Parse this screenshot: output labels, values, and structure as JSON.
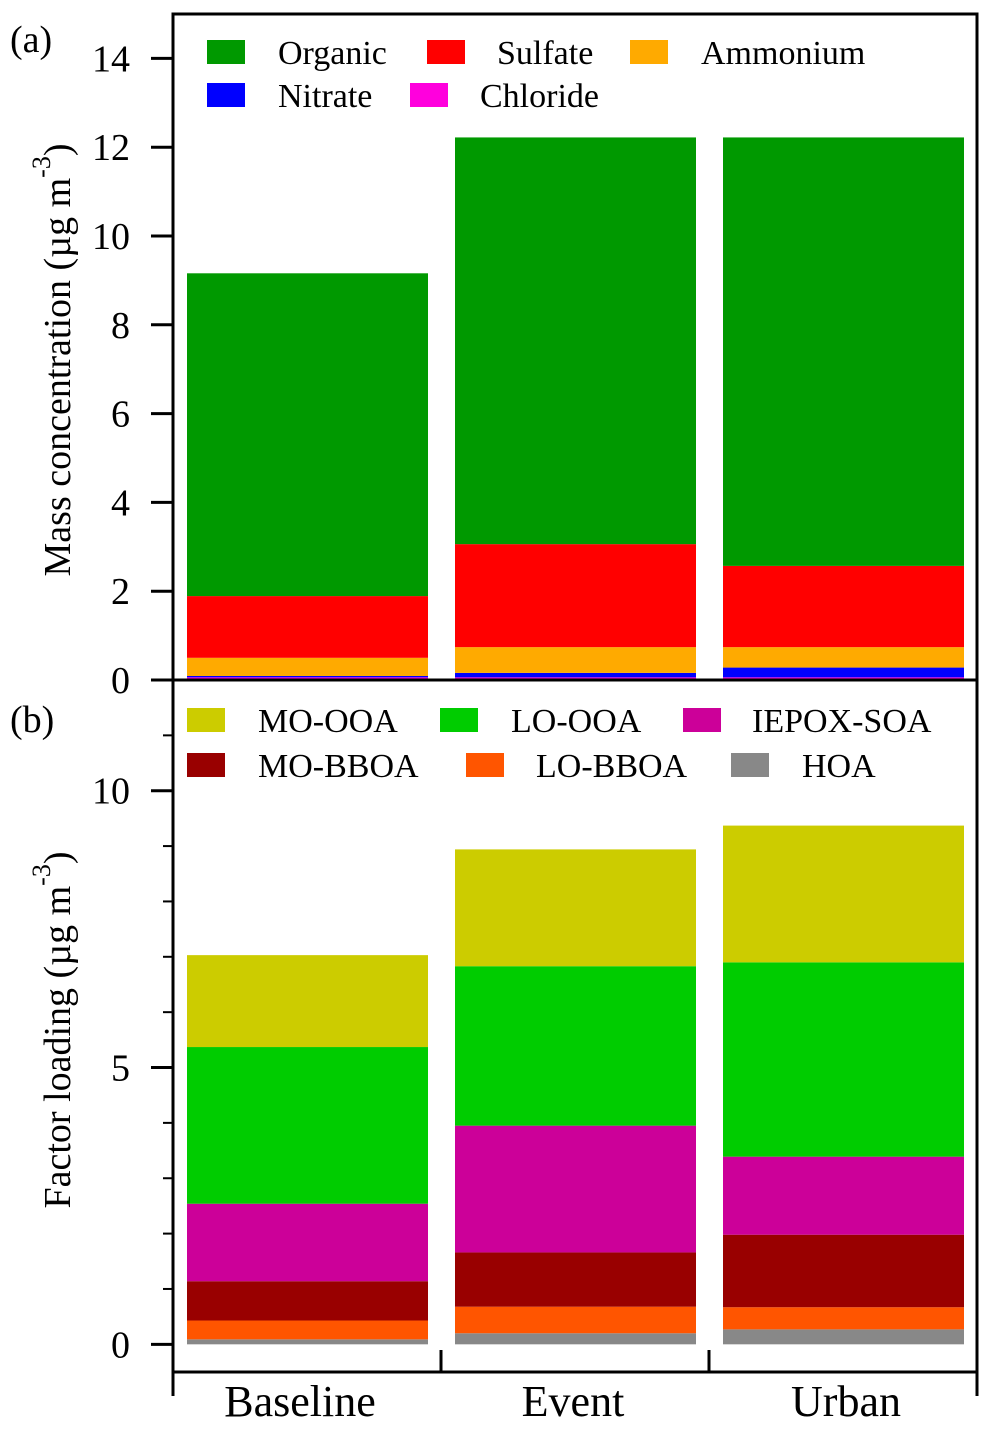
{
  "chart_data": [
    {
      "type": "bar",
      "stacked": true,
      "panel_label": "(a)",
      "ylabel": "Mass concentration (µg m",
      "ylabel_sup": "-3",
      "ylabel_end": ")",
      "ylim": [
        0,
        15
      ],
      "yticks": [
        0,
        2,
        4,
        6,
        8,
        10,
        12,
        14
      ],
      "categories": [
        "Baseline",
        "Event",
        "Urban"
      ],
      "legend_placement": "top-left",
      "series": [
        {
          "name": "Chloride",
          "color": "#ff00dd",
          "values": [
            0.06,
            0.06,
            0.06
          ]
        },
        {
          "name": "Nitrate",
          "color": "#0000ff",
          "values": [
            0.03,
            0.1,
            0.22
          ]
        },
        {
          "name": "Ammonium",
          "color": "#ffaa00",
          "values": [
            0.41,
            0.58,
            0.46
          ]
        },
        {
          "name": "Sulfate",
          "color": "#ff0000",
          "values": [
            1.39,
            2.32,
            1.83
          ]
        },
        {
          "name": "Organic",
          "color": "#009900",
          "values": [
            7.27,
            9.16,
            9.65
          ]
        }
      ],
      "legend_order": [
        "Organic",
        "Sulfate",
        "Ammonium",
        "Nitrate",
        "Chloride"
      ]
    },
    {
      "type": "bar",
      "stacked": true,
      "panel_label": "(b)",
      "ylabel": "Factor loading (µg m",
      "ylabel_sup": "-3",
      "ylabel_end": ")",
      "ylim": [
        -0.5,
        12
      ],
      "yticks": [
        0,
        5,
        10
      ],
      "categories": [
        "Baseline",
        "Event",
        "Urban"
      ],
      "legend_placement": "top-left",
      "series": [
        {
          "name": "HOA",
          "color": "#888888",
          "values": [
            0.09,
            0.2,
            0.27
          ]
        },
        {
          "name": "LO-BBOA",
          "color": "#ff5500",
          "values": [
            0.34,
            0.48,
            0.4
          ]
        },
        {
          "name": "MO-BBOA",
          "color": "#990000",
          "values": [
            0.71,
            0.98,
            1.31
          ]
        },
        {
          "name": "IEPOX-SOA",
          "color": "#cc0099",
          "values": [
            1.4,
            2.29,
            1.41
          ]
        },
        {
          "name": "LO-OOA",
          "color": "#00cc00",
          "values": [
            2.83,
            2.88,
            3.51
          ]
        },
        {
          "name": "MO-OOA",
          "color": "#cccc00",
          "values": [
            1.66,
            2.11,
            2.47
          ]
        }
      ],
      "legend_order": [
        "MO-OOA",
        "LO-OOA",
        "IEPOX-SOA",
        "MO-BBOA",
        "LO-BBOA",
        "HOA"
      ]
    }
  ]
}
